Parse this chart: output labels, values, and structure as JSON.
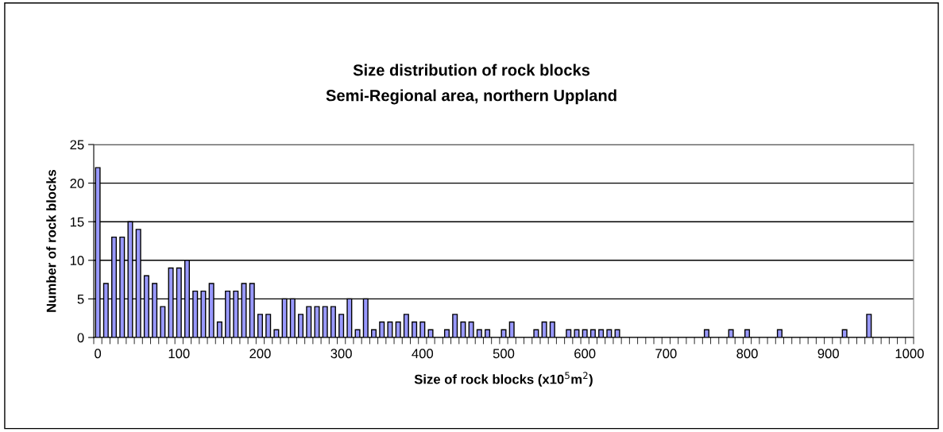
{
  "chart_data": {
    "type": "bar",
    "title": "Size distribution of rock blocks",
    "subtitle": "Semi-Regional area, northern Uppland",
    "xlabel": "Size of rock blocks (x10$^{5}$m$^{2}$)",
    "ylabel": "Number of rock blocks",
    "categories": [
      "0",
      null,
      null,
      null,
      null,
      null,
      null,
      null,
      null,
      null,
      "100",
      null,
      null,
      null,
      null,
      null,
      null,
      null,
      null,
      null,
      "200",
      null,
      null,
      null,
      null,
      null,
      null,
      null,
      null,
      null,
      "300",
      null,
      null,
      null,
      null,
      null,
      null,
      null,
      null,
      null,
      "400",
      null,
      null,
      null,
      null,
      null,
      null,
      null,
      null,
      null,
      "500",
      null,
      null,
      null,
      null,
      null,
      null,
      null,
      null,
      null,
      "600",
      null,
      null,
      null,
      null,
      null,
      null,
      null,
      null,
      null,
      "700",
      null,
      null,
      null,
      null,
      null,
      null,
      null,
      null,
      null,
      "800",
      null,
      null,
      null,
      null,
      null,
      null,
      null,
      null,
      null,
      "900",
      null,
      null,
      null,
      null,
      null,
      null,
      null,
      null,
      null,
      "1000"
    ],
    "values": [
      22,
      7,
      13,
      13,
      15,
      14,
      8,
      7,
      4,
      9,
      9,
      10,
      6,
      6,
      7,
      2,
      6,
      6,
      7,
      7,
      3,
      3,
      1,
      5,
      5,
      3,
      4,
      4,
      4,
      4,
      3,
      5,
      1,
      5,
      1,
      2,
      2,
      2,
      3,
      2,
      2,
      1,
      0,
      1,
      3,
      2,
      2,
      1,
      1,
      0,
      1,
      2,
      0,
      0,
      1,
      2,
      2,
      0,
      1,
      1,
      1,
      1,
      1,
      1,
      1,
      0,
      0,
      0,
      0,
      0,
      0,
      0,
      0,
      0,
      0,
      1,
      0,
      0,
      1,
      0,
      1,
      0,
      0,
      0,
      1,
      0,
      0,
      0,
      0,
      0,
      0,
      0,
      1,
      0,
      0,
      3,
      0,
      0,
      0,
      0,
      0
    ],
    "color": "#9999ff",
    "ylim": [
      0,
      25
    ],
    "yticks": [
      0,
      5,
      10,
      15,
      20,
      25
    ],
    "grid": "y",
    "legend": false
  }
}
